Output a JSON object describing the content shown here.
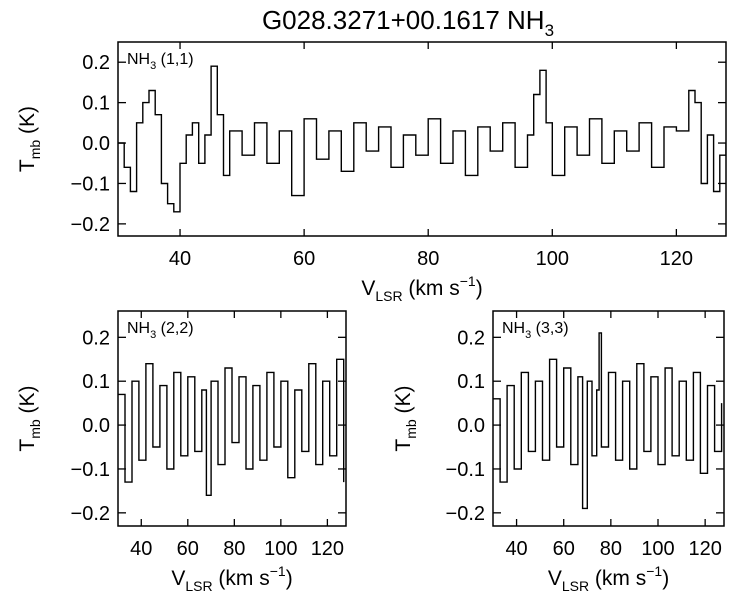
{
  "figure": {
    "title": "G028.3271+00.1617 NH",
    "title_sub": "3"
  },
  "chart_data": [
    {
      "type": "line",
      "name": "NH3 (1,1)",
      "label_main": "NH",
      "label_sub": "3",
      "label_tail": " (1,1)",
      "xlabel": "V",
      "xlabel_sub": "LSR",
      "xlabel_tail": " (km s",
      "xlabel_sup": "−1",
      "xlabel_close": ")",
      "ylabel": "T",
      "ylabel_sub": "mb",
      "ylabel_tail": " (K)",
      "xlim": [
        30,
        128
      ],
      "ylim": [
        -0.23,
        0.25
      ],
      "xticks": [
        40,
        60,
        80,
        100,
        120
      ],
      "xtick_labels": [
        "40",
        "60",
        "80",
        "100",
        "120"
      ],
      "yticks": [
        -0.2,
        -0.1,
        0.0,
        0.1,
        0.2
      ],
      "ytick_labels": [
        "−0.2",
        "−0.1",
        "0.0",
        "0.1",
        "0.2"
      ],
      "x": [
        30,
        31,
        32,
        33,
        34,
        35,
        36,
        37,
        38,
        39,
        40,
        41,
        42,
        43,
        44,
        45,
        46,
        47,
        48,
        50,
        52,
        54,
        56,
        58,
        60,
        62,
        64,
        66,
        68,
        70,
        72,
        74,
        76,
        78,
        80,
        82,
        84,
        86,
        88,
        90,
        92,
        94,
        96,
        97,
        98,
        99,
        100,
        102,
        104,
        106,
        108,
        110,
        112,
        114,
        116,
        118,
        120,
        122,
        123,
        124,
        125,
        126,
        127,
        128
      ],
      "values": [
        0.0,
        -0.06,
        -0.12,
        0.05,
        0.1,
        0.13,
        0.07,
        -0.1,
        -0.15,
        -0.17,
        -0.05,
        0.02,
        0.05,
        -0.05,
        0.02,
        0.19,
        0.07,
        -0.08,
        0.03,
        -0.03,
        0.05,
        -0.05,
        0.03,
        -0.13,
        0.06,
        -0.04,
        0.03,
        -0.07,
        0.05,
        -0.02,
        0.04,
        -0.06,
        0.02,
        -0.03,
        0.06,
        -0.05,
        0.03,
        -0.08,
        0.04,
        -0.02,
        0.05,
        -0.06,
        0.02,
        0.12,
        0.18,
        0.05,
        -0.08,
        0.04,
        -0.03,
        0.06,
        -0.05,
        0.03,
        -0.02,
        0.05,
        -0.06,
        0.04,
        0.03,
        0.13,
        0.1,
        -0.1,
        0.02,
        -0.12,
        -0.03,
        0.0
      ]
    },
    {
      "type": "line",
      "name": "NH3 (2,2)",
      "label_main": "NH",
      "label_sub": "3",
      "label_tail": " (2,2)",
      "xlabel": "V",
      "xlabel_sub": "LSR",
      "xlabel_tail": " (km s",
      "xlabel_sup": "−1",
      "xlabel_close": ")",
      "ylabel": "T",
      "ylabel_sub": "mb",
      "ylabel_tail": " (K)",
      "xlim": [
        30,
        128
      ],
      "ylim": [
        -0.23,
        0.26
      ],
      "xticks": [
        40,
        60,
        80,
        100,
        120
      ],
      "xtick_labels": [
        "40",
        "60",
        "80",
        "100",
        "120"
      ],
      "yticks": [
        -0.2,
        -0.1,
        0.0,
        0.1,
        0.2
      ],
      "ytick_labels": [
        "−0.2",
        "−0.1",
        "0.0",
        "0.1",
        "0.2"
      ],
      "x": [
        30,
        33,
        36,
        39,
        42,
        45,
        48,
        51,
        54,
        57,
        60,
        63,
        66,
        68,
        70,
        73,
        76,
        79,
        82,
        85,
        88,
        91,
        94,
        97,
        100,
        103,
        106,
        109,
        112,
        115,
        118,
        121,
        124,
        127
      ],
      "values": [
        0.07,
        -0.13,
        0.1,
        -0.08,
        0.14,
        -0.05,
        0.09,
        -0.1,
        0.12,
        -0.07,
        0.11,
        -0.06,
        0.08,
        -0.16,
        0.1,
        -0.09,
        0.13,
        -0.04,
        0.11,
        -0.1,
        0.09,
        -0.08,
        0.12,
        -0.05,
        0.1,
        -0.12,
        0.08,
        -0.06,
        0.14,
        -0.09,
        0.1,
        -0.07,
        0.15,
        -0.13
      ]
    },
    {
      "type": "line",
      "name": "NH3 (3,3)",
      "label_main": "NH",
      "label_sub": "3",
      "label_tail": " (3,3)",
      "xlabel": "V",
      "xlabel_sub": "LSR",
      "xlabel_tail": " (km s",
      "xlabel_sup": "−1",
      "xlabel_close": ")",
      "ylabel": "T",
      "ylabel_sub": "mb",
      "ylabel_tail": " (K)",
      "xlim": [
        30,
        128
      ],
      "ylim": [
        -0.23,
        0.26
      ],
      "xticks": [
        40,
        60,
        80,
        100,
        120
      ],
      "xtick_labels": [
        "40",
        "60",
        "80",
        "100",
        "120"
      ],
      "yticks": [
        -0.2,
        -0.1,
        0.0,
        0.1,
        0.2
      ],
      "ytick_labels": [
        "−0.2",
        "−0.1",
        "0.0",
        "0.1",
        "0.2"
      ],
      "x": [
        30,
        33,
        36,
        39,
        42,
        45,
        48,
        51,
        54,
        57,
        60,
        63,
        66,
        68,
        70,
        72,
        74,
        75,
        76,
        79,
        82,
        85,
        88,
        91,
        94,
        97,
        100,
        103,
        106,
        109,
        112,
        115,
        118,
        121,
        124,
        127
      ],
      "values": [
        0.06,
        -0.13,
        0.09,
        -0.1,
        0.12,
        -0.06,
        0.1,
        -0.08,
        0.15,
        -0.05,
        0.13,
        -0.09,
        0.11,
        -0.19,
        0.1,
        -0.07,
        0.08,
        0.21,
        -0.05,
        0.12,
        -0.08,
        0.1,
        -0.1,
        0.14,
        -0.06,
        0.11,
        -0.09,
        0.13,
        -0.07,
        0.1,
        -0.08,
        0.12,
        -0.11,
        0.09,
        -0.06,
        0.05
      ]
    }
  ]
}
